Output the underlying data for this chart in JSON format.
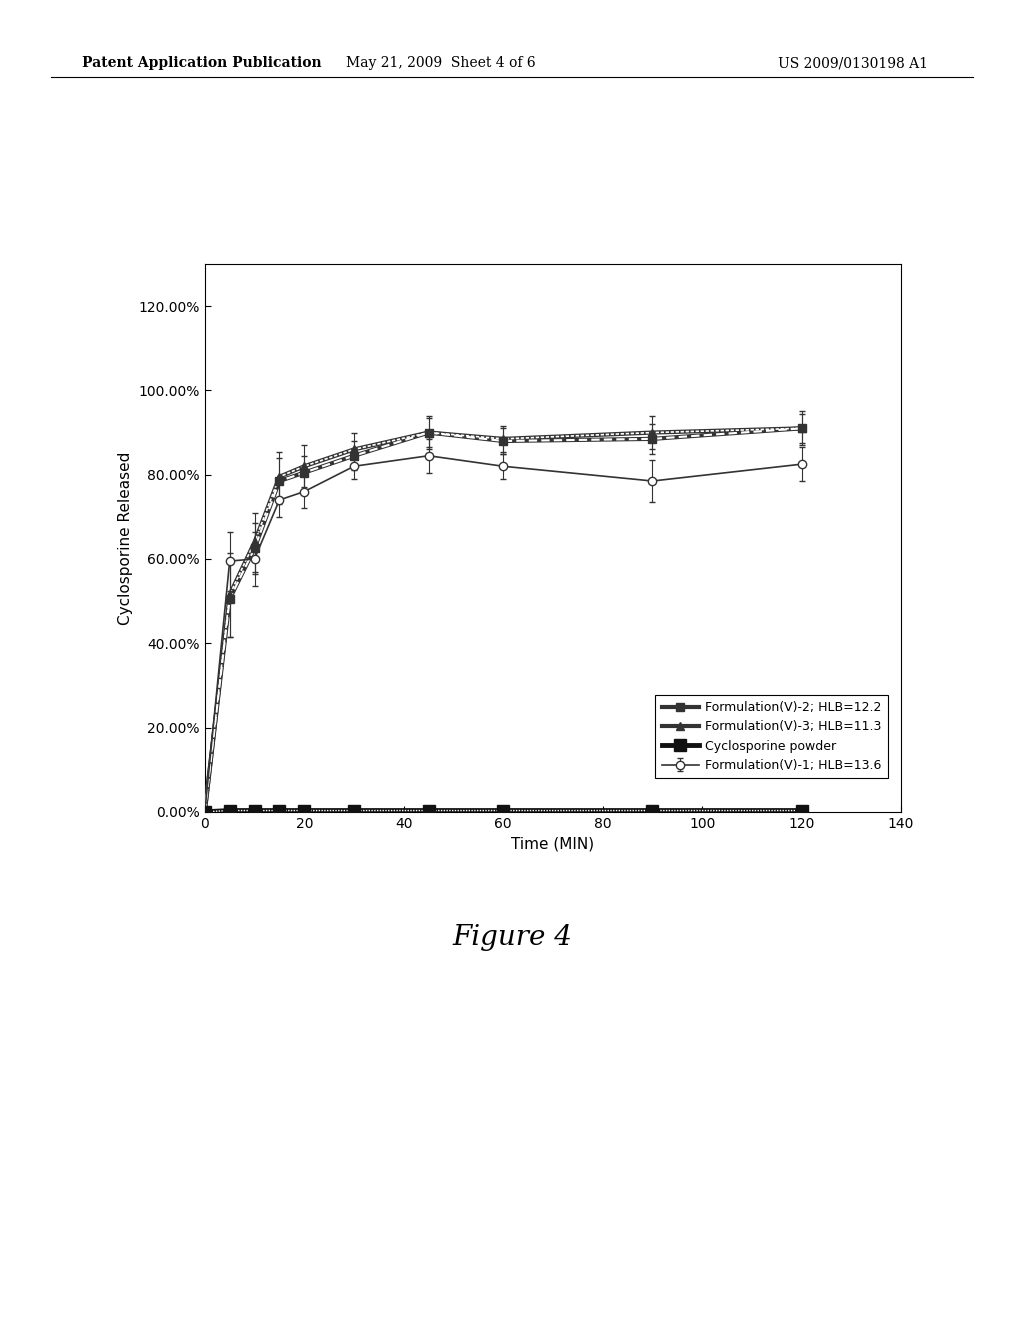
{
  "header_left": "Patent Application Publication",
  "header_mid": "May 21, 2009  Sheet 4 of 6",
  "header_right": "US 2009/0130198 A1",
  "figure_label": "Figure 4",
  "xlabel": "Time (MIN)",
  "ylabel": "Cyclosporine Released",
  "xlim": [
    0,
    140
  ],
  "ylim": [
    0,
    1.3
  ],
  "xticks": [
    0,
    20,
    40,
    60,
    80,
    100,
    120,
    140
  ],
  "ytick_labels": [
    "0.00%",
    "20.00%",
    "40.00%",
    "60.00%",
    "80.00%",
    "100.00%",
    "120.00%"
  ],
  "ytick_values": [
    0.0,
    0.2,
    0.4,
    0.6,
    0.8,
    1.0,
    1.2
  ],
  "series": [
    {
      "label": "Formulation(V)-1; HLB=13.6",
      "x": [
        0,
        5,
        10,
        15,
        20,
        30,
        45,
        60,
        90,
        120
      ],
      "y": [
        0.0,
        0.595,
        0.6,
        0.74,
        0.76,
        0.82,
        0.845,
        0.82,
        0.785,
        0.825
      ],
      "yerr": [
        0.0,
        0.07,
        0.065,
        0.04,
        0.04,
        0.03,
        0.04,
        0.03,
        0.05,
        0.04
      ],
      "color": "#333333",
      "marker": "o",
      "markerfacecolor": "white",
      "markersize": 6,
      "linewidth": 1.2,
      "linestyle": "solid"
    },
    {
      "label": "Formulation(V)-2; HLB=12.2",
      "x": [
        0,
        5,
        10,
        15,
        20,
        30,
        45,
        60,
        90,
        120
      ],
      "y": [
        0.0,
        0.505,
        0.625,
        0.785,
        0.805,
        0.845,
        0.9,
        0.88,
        0.885,
        0.91
      ],
      "yerr": [
        0.0,
        0.09,
        0.06,
        0.055,
        0.04,
        0.035,
        0.04,
        0.03,
        0.035,
        0.04
      ],
      "color": "#333333",
      "marker": "D",
      "markerfacecolor": "#333333",
      "markersize": 6,
      "linewidth": 1.2,
      "linestyle": "hatched"
    },
    {
      "label": "Formulation(V)-3; HLB=11.3",
      "x": [
        0,
        5,
        10,
        15,
        20,
        30,
        45,
        60,
        90,
        120
      ],
      "y": [
        0.0,
        0.515,
        0.64,
        0.795,
        0.82,
        0.86,
        0.9,
        0.885,
        0.9,
        0.91
      ],
      "yerr": [
        0.0,
        0.1,
        0.07,
        0.06,
        0.05,
        0.04,
        0.035,
        0.03,
        0.04,
        0.035
      ],
      "color": "#333333",
      "marker": "^",
      "markerfacecolor": "#333333",
      "markersize": 6,
      "linewidth": 1.2,
      "linestyle": "hatched2"
    },
    {
      "label": "Cyclosporine powder",
      "x": [
        0,
        5,
        10,
        15,
        20,
        30,
        45,
        60,
        90,
        120
      ],
      "y": [
        0.0,
        0.003,
        0.003,
        0.003,
        0.003,
        0.003,
        0.003,
        0.003,
        0.003,
        0.003
      ],
      "yerr": [
        0.0,
        0.001,
        0.001,
        0.001,
        0.001,
        0.001,
        0.001,
        0.001,
        0.001,
        0.001
      ],
      "color": "#111111",
      "marker": "s",
      "markerfacecolor": "#111111",
      "markersize": 8,
      "linewidth": 1.2,
      "linestyle": "hatched3"
    }
  ],
  "background_color": "#ffffff",
  "legend_fontsize": 9,
  "axis_fontsize": 10,
  "label_fontsize": 11,
  "figure_fontsize": 20
}
